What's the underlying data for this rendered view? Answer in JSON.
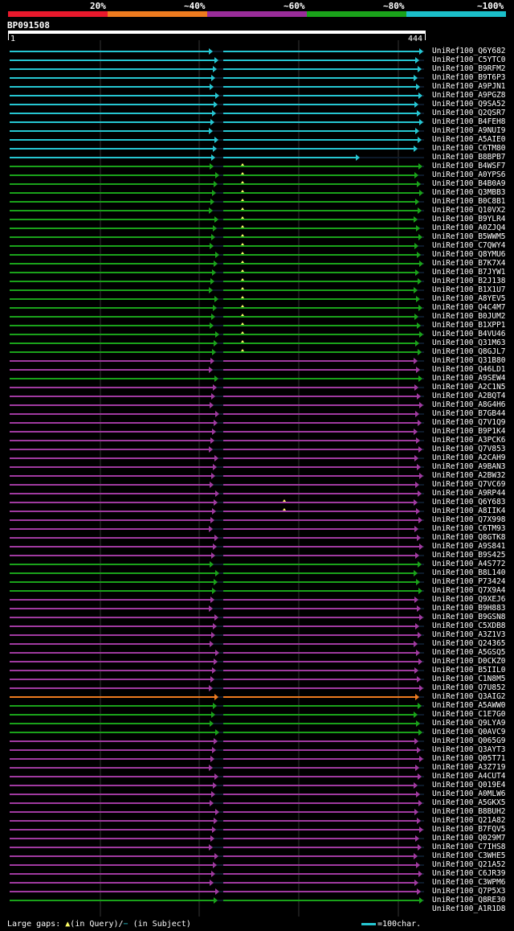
{
  "legend": {
    "labels": [
      "20%",
      "~40%",
      "~60%",
      "~80%",
      "~100%"
    ],
    "colors": [
      "#e8192c",
      "#ee7b1f",
      "#9a2d9a",
      "#1aa21a",
      "#1bbfc9"
    ]
  },
  "query": {
    "id": "BP091508",
    "start": "1",
    "end": "444"
  },
  "hits": [
    "UniRef100_Q6Y682",
    "UniRef100_C5YTC0",
    "UniRef100_B9RFM2",
    "UniRef100_B9T6P3",
    "UniRef100_A9PJN1",
    "UniRef100_A9PGZ8",
    "UniRef100_Q9SA52",
    "UniRef100_Q2QSR7",
    "UniRef100_B4FEH8",
    "UniRef100_A9NUI9",
    "UniRef100_A5AIE0",
    "UniRef100_C6TM80",
    "UniRef100_B8BPB7",
    "UniRef100_B4WSF7",
    "UniRef100_A0YPS6",
    "UniRef100_B4B0A9",
    "UniRef100_Q3MBB3",
    "UniRef100_B0C8B1",
    "UniRef100_Q10VX2",
    "UniRef100_B9YLR4",
    "UniRef100_A0ZJQ4",
    "UniRef100_B5WWM5",
    "UniRef100_C7QWY4",
    "UniRef100_Q8YMU6",
    "UniRef100_B7K7X4",
    "UniRef100_B7JYW1",
    "UniRef100_B2J138",
    "UniRef100_B1X1U7",
    "UniRef100_A8YEV5",
    "UniRef100_Q4C4M7",
    "UniRef100_B0JUM2",
    "UniRef100_B1XPP1",
    "UniRef100_B4VU46",
    "UniRef100_Q31M63",
    "UniRef100_Q8GJL7",
    "UniRef100_Q31B80",
    "UniRef100_Q46LD1",
    "UniRef100_A9SEW4",
    "UniRef100_A2C1N5",
    "UniRef100_A2BQT4",
    "UniRef100_A8G4H6",
    "UniRef100_B7GB44",
    "UniRef100_Q7V1Q9",
    "UniRef100_B9P1K4",
    "UniRef100_A3PCK6",
    "UniRef100_Q7V853",
    "UniRef100_A2CAH9",
    "UniRef100_A9BAN3",
    "UniRef100_A2BW32",
    "UniRef100_Q7VC69",
    "UniRef100_A9RP44",
    "UniRef100_Q6Y683",
    "UniRef100_A8IIK4",
    "UniRef100_Q7X998",
    "UniRef100_C6TM93",
    "UniRef100_Q8GTK8",
    "UniRef100_A9S841",
    "UniRef100_B9S425",
    "UniRef100_A4S772",
    "UniRef100_B8L140",
    "UniRef100_P73424",
    "UniRef100_Q7X9A4",
    "UniRef100_Q9XEJ6",
    "UniRef100_B9H883",
    "UniRef100_B9GSN8",
    "UniRef100_C5XDB8",
    "UniRef100_A3Z1V3",
    "UniRef100_Q24365",
    "UniRef100_A5GSQ5",
    "UniRef100_D0CKZ0",
    "UniRef100_B5IIL0",
    "UniRef100_C1N8M5",
    "UniRef100_Q7U852",
    "UniRef100_Q3AIG2",
    "UniRef100_A5AWW0",
    "UniRef100_C1E7G0",
    "UniRef100_Q9LYA9",
    "UniRef100_Q0AVC9",
    "UniRef100_Q065G9",
    "UniRef100_Q3AYT3",
    "UniRef100_Q05T71",
    "UniRef100_A3Z719",
    "UniRef100_A4CUT4",
    "UniRef100_Q019E4",
    "UniRef100_A0MLW6",
    "UniRef100_A5GKX5",
    "UniRef100_B8BUH2",
    "UniRef100_Q21A82",
    "UniRef100_B7FQV5",
    "UniRef100_Q029M7",
    "UniRef100_C7IHS8",
    "UniRef100_C3WHE5",
    "UniRef100_Q21A52",
    "UniRef100_C6JR39",
    "UniRef100_C3WPM6",
    "UniRef100_Q7P5X3",
    "UniRef100_Q8RE30",
    "UniRef100_A1R1D8"
  ],
  "row_colors": [
    "cyan",
    "cyan",
    "cyan",
    "cyan",
    "cyan",
    "cyan",
    "cyan",
    "cyan",
    "cyan",
    "cyan",
    "cyan",
    "cyan",
    "cyan",
    "green",
    "green",
    "green",
    "green",
    "green",
    "green",
    "green",
    "green",
    "green",
    "green",
    "green",
    "green",
    "green",
    "green",
    "green",
    "green",
    "green",
    "green",
    "green",
    "green",
    "green",
    "green",
    "purple",
    "purple",
    "green",
    "purple",
    "purple",
    "purple",
    "purple",
    "purple",
    "purple",
    "purple",
    "purple",
    "purple",
    "purple",
    "purple",
    "purple",
    "purple",
    "purple",
    "purple",
    "purple",
    "purple",
    "purple",
    "purple",
    "purple",
    "green",
    "green",
    "green",
    "green",
    "purple",
    "purple",
    "purple",
    "purple",
    "purple",
    "purple",
    "purple",
    "purple",
    "purple",
    "purple",
    "purple",
    "orange",
    "green",
    "green",
    "green",
    "green",
    "purple",
    "purple",
    "purple",
    "purple",
    "purple",
    "purple",
    "purple",
    "purple",
    "purple",
    "purple",
    "purple",
    "purple",
    "purple",
    "purple",
    "purple",
    "purple",
    "purple",
    "purple",
    "green"
  ],
  "footer": {
    "gaps_label": "Large gaps:",
    "in_query": "(in Query)/",
    "in_subject": "(in Subject)",
    "scale": "=100char."
  }
}
